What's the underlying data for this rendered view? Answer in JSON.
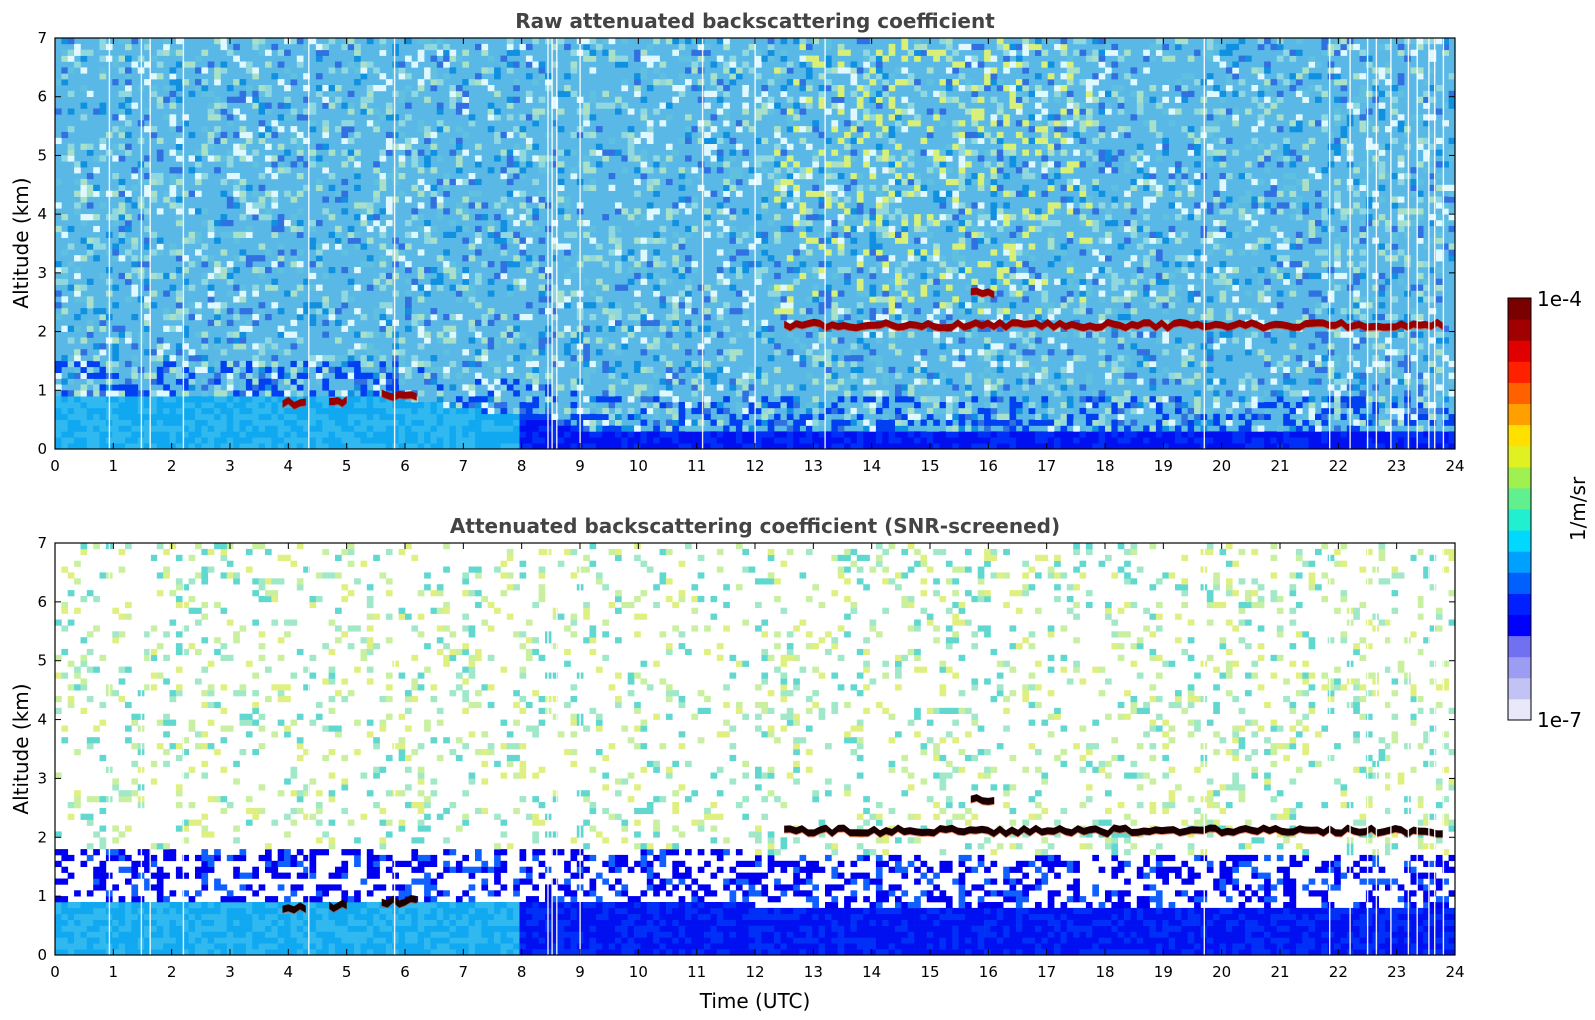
{
  "chart_data": [
    {
      "type": "heatmap",
      "title": "Raw attenuated backscattering coefficient",
      "xlabel": "",
      "ylabel": "Altitude (km)",
      "xlim": [
        0,
        24
      ],
      "ylim": [
        0,
        7
      ],
      "xticks": [
        0,
        1,
        2,
        3,
        4,
        5,
        6,
        7,
        8,
        9,
        10,
        11,
        12,
        13,
        14,
        15,
        16,
        17,
        18,
        19,
        20,
        21,
        22,
        23,
        24
      ],
      "yticks": [
        0,
        1,
        2,
        3,
        4,
        5,
        6,
        7
      ],
      "screened": false,
      "boundary_layer_top": [
        {
          "x": 0,
          "y": 0.9
        },
        {
          "x": 2,
          "y": 0.92
        },
        {
          "x": 4,
          "y": 0.9
        },
        {
          "x": 6,
          "y": 0.85
        },
        {
          "x": 7,
          "y": 0.7
        },
        {
          "x": 8,
          "y": 0.55
        },
        {
          "x": 8.5,
          "y": 0.5
        },
        {
          "x": 9,
          "y": 0.35
        },
        {
          "x": 12,
          "y": 0.3
        },
        {
          "x": 24,
          "y": 0.25
        }
      ],
      "cloud_layers": [
        {
          "x_start": 3.9,
          "x_end": 4.3,
          "y": 0.78
        },
        {
          "x_start": 4.7,
          "x_end": 5.0,
          "y": 0.82
        },
        {
          "x_start": 5.6,
          "x_end": 6.2,
          "y": 0.9
        },
        {
          "x_start": 12.5,
          "x_end": 23.8,
          "y": 2.1
        },
        {
          "x_start": 15.7,
          "x_end": 16.1,
          "y": 2.65
        }
      ],
      "gaps_x": [
        0.93,
        1.48,
        1.63,
        2.2,
        4.35,
        5.82,
        8.45,
        8.52,
        8.6,
        9.0,
        11.1,
        12.0,
        13.2,
        19.7,
        21.85,
        22.2,
        22.5,
        22.65,
        22.9,
        23.2,
        23.35,
        23.55,
        23.65,
        23.8
      ]
    },
    {
      "type": "heatmap",
      "title": "Attenuated backscattering coefficient (SNR-screened)",
      "xlabel": "Time (UTC)",
      "ylabel": "Altitude (km)",
      "xlim": [
        0,
        24
      ],
      "ylim": [
        0,
        7
      ],
      "xticks": [
        0,
        1,
        2,
        3,
        4,
        5,
        6,
        7,
        8,
        9,
        10,
        11,
        12,
        13,
        14,
        15,
        16,
        17,
        18,
        19,
        20,
        21,
        22,
        23,
        24
      ],
      "yticks": [
        0,
        1,
        2,
        3,
        4,
        5,
        6,
        7
      ],
      "screened": true,
      "boundary_layer_top": [
        {
          "x": 0,
          "y": 0.9
        },
        {
          "x": 2,
          "y": 0.92
        },
        {
          "x": 4,
          "y": 0.9
        },
        {
          "x": 6,
          "y": 0.85
        },
        {
          "x": 7,
          "y": 0.9
        },
        {
          "x": 8,
          "y": 0.95
        },
        {
          "x": 9,
          "y": 0.9
        },
        {
          "x": 12,
          "y": 0.85
        },
        {
          "x": 24,
          "y": 0.8
        }
      ],
      "cloud_layers": [
        {
          "x_start": 3.9,
          "x_end": 4.3,
          "y": 0.78
        },
        {
          "x_start": 4.7,
          "x_end": 5.0,
          "y": 0.82
        },
        {
          "x_start": 5.6,
          "x_end": 6.2,
          "y": 0.9
        },
        {
          "x_start": 12.5,
          "x_end": 23.8,
          "y": 2.1
        },
        {
          "x_start": 15.7,
          "x_end": 16.1,
          "y": 2.65
        }
      ],
      "gaps_x": [
        0.93,
        1.48,
        1.63,
        2.2,
        4.35,
        5.82,
        8.45,
        8.52,
        8.6,
        9.0,
        19.7,
        21.85,
        22.2,
        22.5,
        22.65,
        22.9,
        23.2,
        23.35,
        23.55,
        23.65,
        23.8
      ]
    }
  ],
  "colorbar": {
    "label": "1/m/sr",
    "max_label": "1e-4",
    "min_label": "1e-7",
    "colors": [
      "#e8e8fa",
      "#c2c2f5",
      "#9c9cf2",
      "#7070f0",
      "#0000ff",
      "#0020ff",
      "#0060ff",
      "#00a0ff",
      "#00d8ff",
      "#20f0d0",
      "#60f090",
      "#a0f050",
      "#e0f020",
      "#ffe000",
      "#ffa000",
      "#ff6000",
      "#ff2000",
      "#e00000",
      "#a00000",
      "#7a0000"
    ]
  }
}
